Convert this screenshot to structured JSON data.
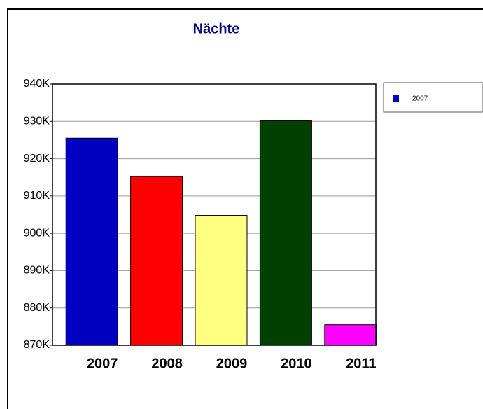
{
  "chart_data": {
    "type": "bar",
    "title": "Nächte",
    "categories": [
      "2007",
      "2008",
      "2009",
      "2010",
      "2011"
    ],
    "values": [
      925500,
      915200,
      904800,
      930200,
      875500
    ],
    "colors": [
      "#0000c0",
      "#ff0000",
      "#ffff80",
      "#004000",
      "#ff00ff"
    ],
    "ylim": [
      870000,
      940000
    ],
    "yticks": [
      {
        "value": 870000,
        "label": "870K"
      },
      {
        "value": 880000,
        "label": "880K"
      },
      {
        "value": 890000,
        "label": "890K"
      },
      {
        "value": 900000,
        "label": "900K"
      },
      {
        "value": 910000,
        "label": "910K"
      },
      {
        "value": 920000,
        "label": "920K"
      },
      {
        "value": 930000,
        "label": "930K"
      },
      {
        "value": 940000,
        "label": "940K"
      }
    ],
    "grid": true,
    "legend": {
      "label": "2007",
      "color": "#0000c0",
      "position": "upper right"
    }
  }
}
